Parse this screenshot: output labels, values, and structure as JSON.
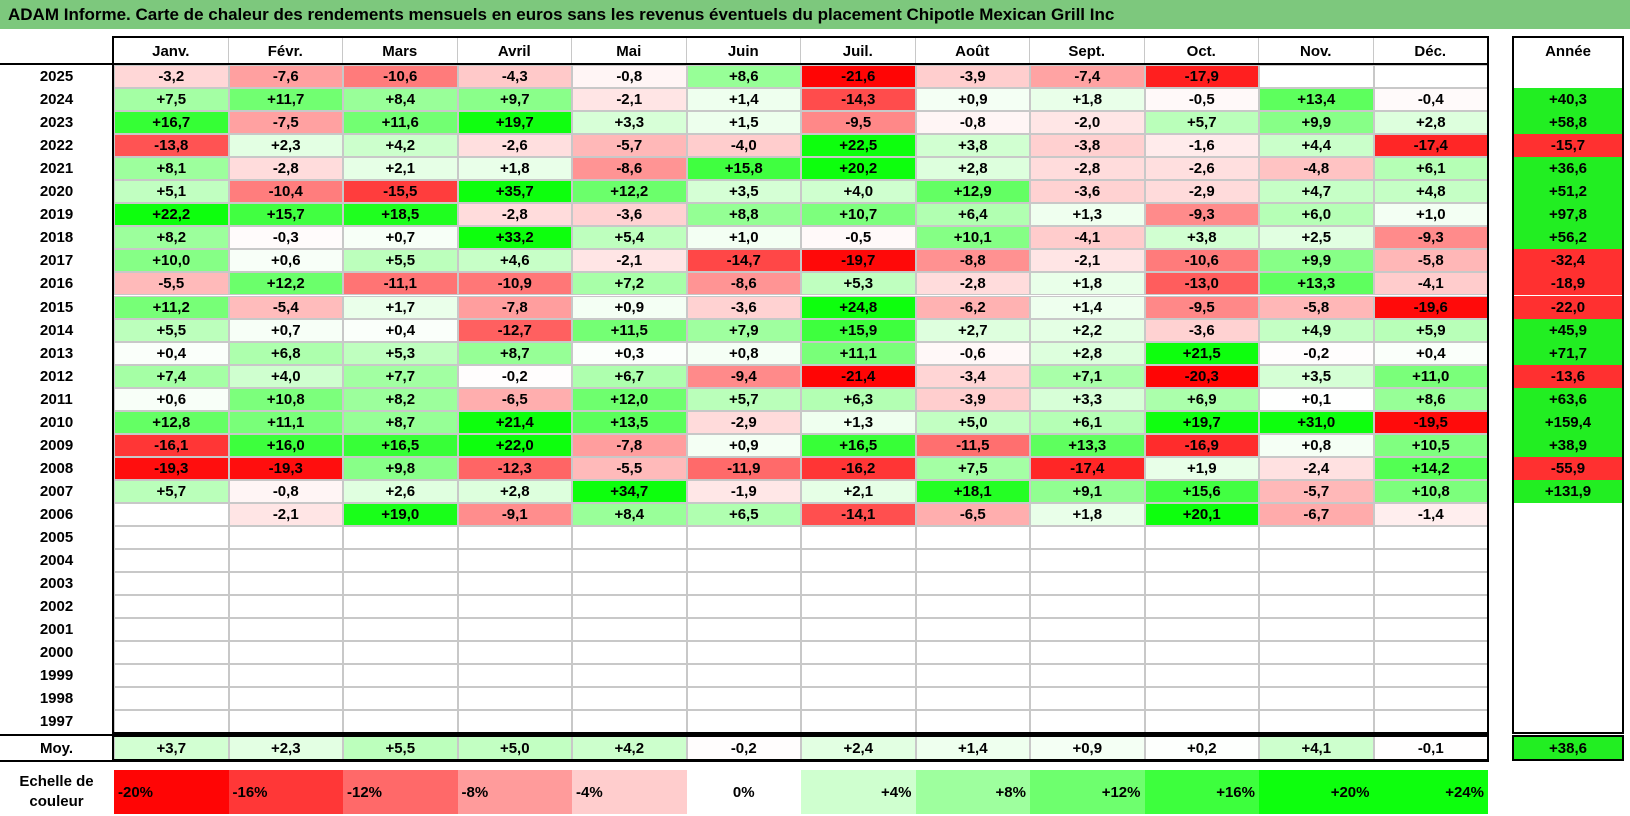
{
  "title": "ADAM Informe. Carte de chaleur des rendements mensuels en euros sans les revenus éventuels du placement Chipotle Mexican Grill Inc",
  "chart_data": {
    "type": "heatmap",
    "months": [
      "Janv.",
      "Févr.",
      "Mars",
      "Avril",
      "Mai",
      "Juin",
      "Juil.",
      "Août",
      "Sept.",
      "Oct.",
      "Nov.",
      "Déc."
    ],
    "year_header": "Année",
    "rows": [
      {
        "year": "2025",
        "values": [
          "-3,2",
          "-7,6",
          "-10,6",
          "-4,3",
          "-0,8",
          "+8,6",
          "-21,6",
          "-3,9",
          "-7,4",
          "-17,9",
          "",
          ""
        ],
        "annual": ""
      },
      {
        "year": "2024",
        "values": [
          "+7,5",
          "+11,7",
          "+8,4",
          "+9,7",
          "-2,1",
          "+1,4",
          "-14,3",
          "+0,9",
          "+1,8",
          "-0,5",
          "+13,4",
          "-0,4"
        ],
        "annual": "+40,3"
      },
      {
        "year": "2023",
        "values": [
          "+16,7",
          "-7,5",
          "+11,6",
          "+19,7",
          "+3,3",
          "+1,5",
          "-9,5",
          "-0,8",
          "-2,0",
          "+5,7",
          "+9,9",
          "+2,8"
        ],
        "annual": "+58,8"
      },
      {
        "year": "2022",
        "values": [
          "-13,8",
          "+2,3",
          "+4,2",
          "-2,6",
          "-5,7",
          "-4,0",
          "+22,5",
          "+3,8",
          "-3,8",
          "-1,6",
          "+4,4",
          "-17,4"
        ],
        "annual": "-15,7"
      },
      {
        "year": "2021",
        "values": [
          "+8,1",
          "-2,8",
          "+2,1",
          "+1,8",
          "-8,6",
          "+15,8",
          "+20,2",
          "+2,8",
          "-2,8",
          "-2,6",
          "-4,8",
          "+6,1"
        ],
        "annual": "+36,6"
      },
      {
        "year": "2020",
        "values": [
          "+5,1",
          "-10,4",
          "-15,5",
          "+35,7",
          "+12,2",
          "+3,5",
          "+4,0",
          "+12,9",
          "-3,6",
          "-2,9",
          "+4,7",
          "+4,8"
        ],
        "annual": "+51,2"
      },
      {
        "year": "2019",
        "values": [
          "+22,2",
          "+15,7",
          "+18,5",
          "-2,8",
          "-3,6",
          "+8,8",
          "+10,7",
          "+6,4",
          "+1,3",
          "-9,3",
          "+6,0",
          "+1,0"
        ],
        "annual": "+97,8"
      },
      {
        "year": "2018",
        "values": [
          "+8,2",
          "-0,3",
          "+0,7",
          "+33,2",
          "+5,4",
          "+1,0",
          "-0,5",
          "+10,1",
          "-4,1",
          "+3,8",
          "+2,5",
          "-9,3"
        ],
        "annual": "+56,2"
      },
      {
        "year": "2017",
        "values": [
          "+10,0",
          "+0,6",
          "+5,5",
          "+4,6",
          "-2,1",
          "-14,7",
          "-19,7",
          "-8,8",
          "-2,1",
          "-10,6",
          "+9,9",
          "-5,8"
        ],
        "annual": "-32,4"
      },
      {
        "year": "2016",
        "values": [
          "-5,5",
          "+12,2",
          "-11,1",
          "-10,9",
          "+7,2",
          "-8,6",
          "+5,3",
          "-2,8",
          "+1,8",
          "-13,0",
          "+13,3",
          "-4,1"
        ],
        "annual": "-18,9"
      },
      {
        "year": "2015",
        "values": [
          "+11,2",
          "-5,4",
          "+1,7",
          "-7,8",
          "+0,9",
          "-3,6",
          "+24,8",
          "-6,2",
          "+1,4",
          "-9,5",
          "-5,8",
          "-19,6"
        ],
        "annual": "-22,0"
      },
      {
        "year": "2014",
        "values": [
          "+5,5",
          "+0,7",
          "+0,4",
          "-12,7",
          "+11,5",
          "+7,9",
          "+15,9",
          "+2,7",
          "+2,2",
          "-3,6",
          "+4,9",
          "+5,9"
        ],
        "annual": "+45,9"
      },
      {
        "year": "2013",
        "values": [
          "+0,4",
          "+6,8",
          "+5,3",
          "+8,7",
          "+0,3",
          "+0,8",
          "+11,1",
          "-0,6",
          "+2,8",
          "+21,5",
          "-0,2",
          "+0,4"
        ],
        "annual": "+71,7"
      },
      {
        "year": "2012",
        "values": [
          "+7,4",
          "+4,0",
          "+7,7",
          "-0,2",
          "+6,7",
          "-9,4",
          "-21,4",
          "-3,4",
          "+7,1",
          "-20,3",
          "+3,5",
          "+11,0"
        ],
        "annual": "-13,6"
      },
      {
        "year": "2011",
        "values": [
          "+0,6",
          "+10,8",
          "+8,2",
          "-6,5",
          "+12,0",
          "+5,7",
          "+6,3",
          "-3,9",
          "+3,3",
          "+6,9",
          "+0,1",
          "+8,6"
        ],
        "annual": "+63,6"
      },
      {
        "year": "2010",
        "values": [
          "+12,8",
          "+11,1",
          "+8,7",
          "+21,4",
          "+13,5",
          "-2,9",
          "+1,3",
          "+5,0",
          "+6,1",
          "+19,7",
          "+31,0",
          "-19,5"
        ],
        "annual": "+159,4"
      },
      {
        "year": "2009",
        "values": [
          "-16,1",
          "+16,0",
          "+16,5",
          "+22,0",
          "-7,8",
          "+0,9",
          "+16,5",
          "-11,5",
          "+13,3",
          "-16,9",
          "+0,8",
          "+10,5"
        ],
        "annual": "+38,9"
      },
      {
        "year": "2008",
        "values": [
          "-19,3",
          "-19,3",
          "+9,8",
          "-12,3",
          "-5,5",
          "-11,9",
          "-16,2",
          "+7,5",
          "-17,4",
          "+1,9",
          "-2,4",
          "+14,2"
        ],
        "annual": "-55,9"
      },
      {
        "year": "2007",
        "values": [
          "+5,7",
          "-0,8",
          "+2,6",
          "+2,8",
          "+34,7",
          "-1,9",
          "+2,1",
          "+18,1",
          "+9,1",
          "+15,6",
          "-5,7",
          "+10,8"
        ],
        "annual": "+131,9"
      },
      {
        "year": "2006",
        "values": [
          "",
          "-2,1",
          "+19,0",
          "-9,1",
          "+8,4",
          "+6,5",
          "-14,1",
          "-6,5",
          "+1,8",
          "+20,1",
          "-6,7",
          "-1,4"
        ],
        "annual": ""
      },
      {
        "year": "2005",
        "values": [
          "",
          "",
          "",
          "",
          "",
          "",
          "",
          "",
          "",
          "",
          "",
          ""
        ],
        "annual": ""
      },
      {
        "year": "2004",
        "values": [
          "",
          "",
          "",
          "",
          "",
          "",
          "",
          "",
          "",
          "",
          "",
          ""
        ],
        "annual": ""
      },
      {
        "year": "2003",
        "values": [
          "",
          "",
          "",
          "",
          "",
          "",
          "",
          "",
          "",
          "",
          "",
          ""
        ],
        "annual": ""
      },
      {
        "year": "2002",
        "values": [
          "",
          "",
          "",
          "",
          "",
          "",
          "",
          "",
          "",
          "",
          "",
          ""
        ],
        "annual": ""
      },
      {
        "year": "2001",
        "values": [
          "",
          "",
          "",
          "",
          "",
          "",
          "",
          "",
          "",
          "",
          "",
          ""
        ],
        "annual": ""
      },
      {
        "year": "2000",
        "values": [
          "",
          "",
          "",
          "",
          "",
          "",
          "",
          "",
          "",
          "",
          "",
          ""
        ],
        "annual": ""
      },
      {
        "year": "1999",
        "values": [
          "",
          "",
          "",
          "",
          "",
          "",
          "",
          "",
          "",
          "",
          "",
          ""
        ],
        "annual": ""
      },
      {
        "year": "1998",
        "values": [
          "",
          "",
          "",
          "",
          "",
          "",
          "",
          "",
          "",
          "",
          "",
          ""
        ],
        "annual": ""
      },
      {
        "year": "1997",
        "values": [
          "",
          "",
          "",
          "",
          "",
          "",
          "",
          "",
          "",
          "",
          "",
          ""
        ],
        "annual": ""
      }
    ],
    "average": {
      "label": "Moy.",
      "values": [
        "+3,7",
        "+2,3",
        "+5,5",
        "+5,0",
        "+4,2",
        "-0,2",
        "+2,4",
        "+1,4",
        "+0,9",
        "+0,2",
        "+4,1",
        "-0,1"
      ],
      "annual": "+38,6"
    },
    "scale": {
      "label_line1": "Echelle de",
      "label_line2": "couleur",
      "steps": [
        {
          "text": "-20%",
          "value": -20
        },
        {
          "text": "-16%",
          "value": -16
        },
        {
          "text": "-12%",
          "value": -12
        },
        {
          "text": "-8%",
          "value": -8
        },
        {
          "text": "-4%",
          "value": -4
        },
        {
          "text": "0%",
          "value": 0
        },
        {
          "text": "+4%",
          "value": 4
        },
        {
          "text": "+8%",
          "value": 8
        },
        {
          "text": "+12%",
          "value": 12
        },
        {
          "text": "+16%",
          "value": 16
        },
        {
          "text": "+20%",
          "value": 20
        },
        {
          "text": "+24%",
          "value": 24
        }
      ]
    },
    "colors": {
      "negative_max": "#ff0000",
      "zero": "#ffffff",
      "positive_max": "#00ff00",
      "title_bg": "#7dc87d"
    }
  }
}
